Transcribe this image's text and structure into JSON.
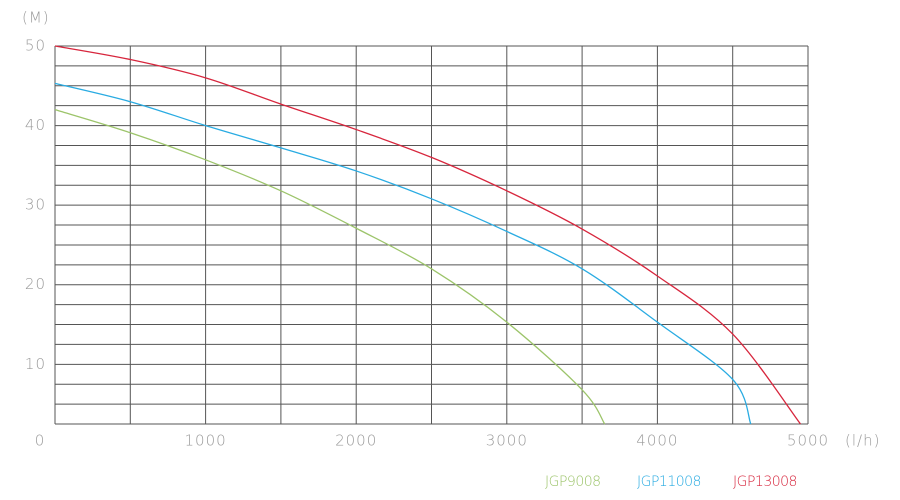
{
  "chart_data": {
    "type": "line",
    "y_label": "(M)",
    "x_label": "(l/h)",
    "xlim": [
      0,
      5000
    ],
    "ylim": [
      2.5,
      50
    ],
    "xticks": [
      0,
      1000,
      2000,
      3000,
      4000,
      5000
    ],
    "yticks": [
      10,
      20,
      30,
      40,
      50
    ],
    "xgrid": [
      0,
      500,
      1000,
      1500,
      2000,
      2500,
      3000,
      3500,
      4000,
      4500,
      5000
    ],
    "ygrid": [
      2.5,
      5,
      7.5,
      10,
      12.5,
      15,
      17.5,
      20,
      22.5,
      25,
      27.5,
      30,
      32.5,
      35,
      37.5,
      40,
      42.5,
      45,
      47.5,
      50
    ],
    "series": [
      {
        "name": "JGP9008",
        "color": "#9cc46a",
        "x": [
          0,
          500,
          1000,
          1500,
          2000,
          2500,
          3000,
          3500,
          3650
        ],
        "values": [
          42,
          39.1,
          35.7,
          31.8,
          27.1,
          22,
          15.3,
          6.8,
          2.5
        ]
      },
      {
        "name": "JGP11008",
        "color": "#29abe2",
        "x": [
          0,
          500,
          1000,
          1500,
          2000,
          2500,
          3000,
          3500,
          4000,
          4500,
          4620
        ],
        "values": [
          45.3,
          43,
          40,
          37.2,
          34.3,
          30.8,
          26.7,
          22,
          15.3,
          8.1,
          2.5
        ]
      },
      {
        "name": "JGP13008",
        "color": "#d7263d",
        "x": [
          0,
          500,
          1000,
          1500,
          2000,
          2500,
          3000,
          3500,
          4000,
          4500,
          4950
        ],
        "values": [
          50,
          48.3,
          46,
          42.7,
          39.5,
          36,
          31.8,
          27,
          21.1,
          13.8,
          2.5
        ]
      }
    ]
  }
}
